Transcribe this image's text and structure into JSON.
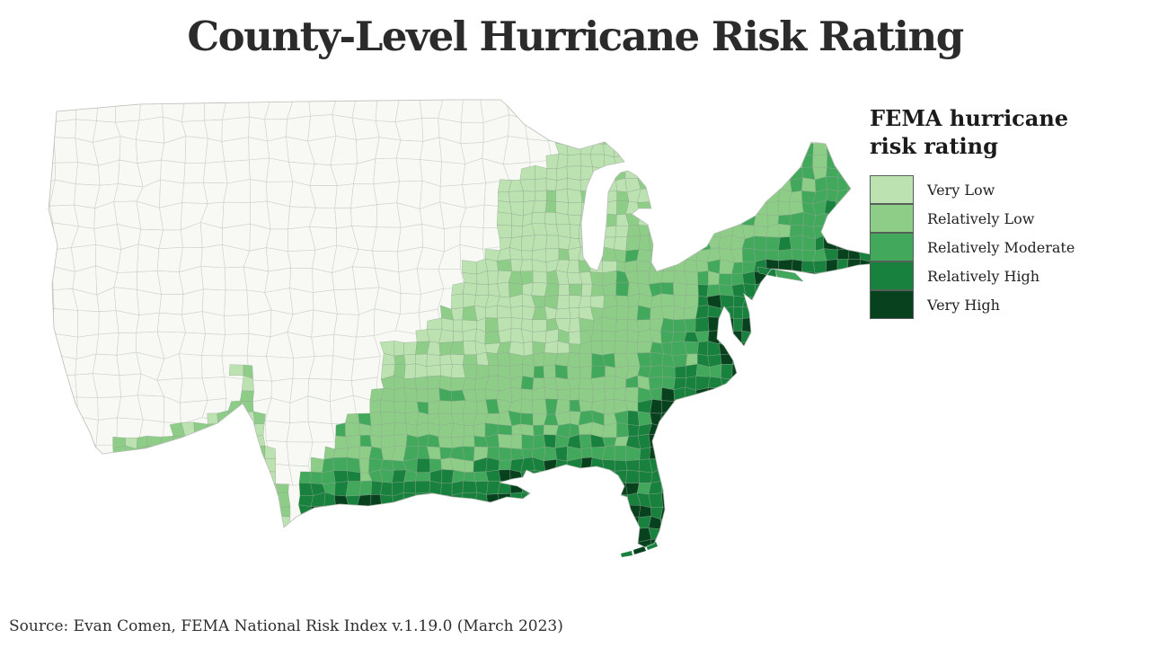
{
  "title": "County-Level Hurricane Risk Rating",
  "legend": {
    "title": "FEMA hurricane risk rating",
    "items": [
      {
        "label": "Very Low",
        "color": "#bce2b1"
      },
      {
        "label": "Relatively Low",
        "color": "#8ecd88"
      },
      {
        "label": "Relatively Moderate",
        "color": "#42a85c"
      },
      {
        "label": "Relatively High",
        "color": "#17813d"
      },
      {
        "label": "Very High",
        "color": "#07411d"
      }
    ]
  },
  "source": "Source: Evan Comen, FEMA National Risk Index v.1.19.0 (March 2023)",
  "map": {
    "class_colors": [
      "#bce2b1",
      "#8ecd88",
      "#42a85c",
      "#17813d",
      "#07411d"
    ],
    "unrated_fill": "#f8f9f5",
    "unrated_border": "#ccd1cb",
    "rated_border": "#8fa28f",
    "coast_outline": "#b8beb6"
  },
  "chart_data": {
    "type": "choropleth",
    "title": "County-Level Hurricane Risk Rating",
    "legend_title": "FEMA hurricane risk rating",
    "categories": [
      "Very Low",
      "Relatively Low",
      "Relatively Moderate",
      "Relatively High",
      "Very High"
    ],
    "colors": [
      "#bce2b1",
      "#8ecd88",
      "#42a85c",
      "#17813d",
      "#07411d"
    ],
    "not_rated_color": "#f8f9f5",
    "unit": "FEMA National Risk Index hurricane risk rating by U.S. county",
    "regions": [
      {
        "region": "Western U.S. and northern Plains (WA, OR, CA, NV, ID, MT, WY, UT, CO, AZ, NM, ND, SD, NE, MN, IA, most of KS and MO)",
        "rating": "Not rated (white)"
      },
      {
        "region": "Upper Midwest and Great Lakes (MI, WI east, IL, IN, OH)",
        "rating": "Very Low"
      },
      {
        "region": "Interior South and Appalachia (KY, TN, MO southeast, AR north, WV)",
        "rating": "Very Low"
      },
      {
        "region": "Inland South (MS, AL, GA interior, piedmont Carolinas, east TX, OK)",
        "rating": "Relatively Low"
      },
      {
        "region": "U.S.-Mexico border strip and El Paso area",
        "rating": "Relatively Low"
      },
      {
        "region": "Near-coastal South and mid-Atlantic interior",
        "rating": "Relatively Moderate"
      },
      {
        "region": "Gulf Coast (south TX, LA, MS, AL, FL panhandle)",
        "rating": "Relatively High to Very High"
      },
      {
        "region": "Florida peninsula and Keys",
        "rating": "Relatively High to Very High"
      },
      {
        "region": "Atlantic Coast (GA, SC, NC Outer Banks, Chesapeake, NJ)",
        "rating": "Relatively Moderate to Very High"
      },
      {
        "region": "Northeast coast (Long Island, CT, RI, Boston, Cape Cod)",
        "rating": "Relatively Moderate to Relatively High"
      },
      {
        "region": "Northern New England interior and Maine",
        "rating": "Relatively Low"
      }
    ],
    "source": "Evan Comen, FEMA National Risk Index v.1.19.0 (March 2023)"
  }
}
